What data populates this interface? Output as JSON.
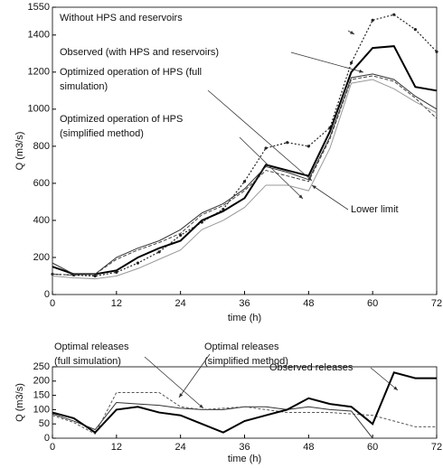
{
  "chart_data": [
    {
      "type": "line",
      "xlabel": "time (h)",
      "ylabel": "Q (m3/s)",
      "x": [
        0,
        4,
        8,
        12,
        16,
        20,
        24,
        28,
        32,
        36,
        40,
        44,
        48,
        52,
        56,
        60,
        64,
        68,
        72
      ],
      "xlim": [
        0,
        72
      ],
      "xticks": [
        0,
        12,
        24,
        36,
        48,
        60,
        72
      ],
      "ylim": [
        0,
        1550
      ],
      "yticks": [
        0,
        200,
        400,
        600,
        800,
        1000,
        1200,
        1400,
        1550
      ],
      "series": [
        {
          "name": "Without HPS and reservoirs",
          "color": "#222222",
          "dash": "2,2",
          "width": 1.2,
          "marker": true,
          "values": [
            110,
            105,
            100,
            120,
            170,
            230,
            320,
            390,
            460,
            610,
            790,
            820,
            800,
            900,
            1250,
            1480,
            1510,
            1430,
            1310
          ]
        },
        {
          "name": "Observed (with HPS and reservoirs)",
          "color": "#000000",
          "dash": "none",
          "width": 2,
          "marker": false,
          "values": [
            150,
            110,
            110,
            130,
            200,
            250,
            290,
            400,
            450,
            520,
            700,
            670,
            640,
            880,
            1200,
            1330,
            1340,
            1120,
            1100
          ]
        },
        {
          "name": "Optimized operation of HPS (full simulation)",
          "color": "#333333",
          "dash": "none",
          "width": 1,
          "marker": false,
          "values": [
            170,
            110,
            110,
            200,
            250,
            290,
            350,
            440,
            490,
            570,
            690,
            660,
            620,
            850,
            1170,
            1190,
            1160,
            1070,
            1000
          ]
        },
        {
          "name": "Optimized operation of HPS (simplified method)",
          "color": "#444444",
          "dash": "4,2",
          "width": 1,
          "marker": false,
          "values": [
            110,
            105,
            110,
            190,
            240,
            280,
            330,
            430,
            480,
            560,
            670,
            640,
            610,
            840,
            1160,
            1180,
            1150,
            1060,
            950
          ]
        },
        {
          "name": "Lower limit",
          "color": "#999999",
          "dash": "none",
          "width": 1,
          "marker": false,
          "values": [
            100,
            90,
            85,
            100,
            140,
            190,
            240,
            350,
            400,
            470,
            590,
            590,
            560,
            790,
            1140,
            1160,
            1110,
            1040,
            980
          ]
        }
      ]
    },
    {
      "type": "line",
      "xlabel": "time (h)",
      "ylabel": "Q (m3/s)",
      "x": [
        0,
        4,
        8,
        12,
        16,
        20,
        24,
        28,
        32,
        36,
        40,
        44,
        48,
        52,
        56,
        60,
        64,
        68,
        72
      ],
      "xlim": [
        0,
        72
      ],
      "xticks": [
        0,
        12,
        24,
        36,
        48,
        60,
        72
      ],
      "ylim": [
        0,
        250
      ],
      "yticks": [
        0,
        50,
        100,
        150,
        200,
        250
      ],
      "series": [
        {
          "name": "Optimal releases (full simulation)",
          "color": "#333333",
          "dash": "none",
          "width": 1,
          "marker": false,
          "values": [
            85,
            60,
            30,
            125,
            120,
            115,
            105,
            100,
            100,
            110,
            110,
            100,
            110,
            100,
            95,
            0,
            0,
            0,
            0
          ]
        },
        {
          "name": "Optimal releases (simplified method)",
          "color": "#555555",
          "dash": "3,2",
          "width": 1,
          "marker": false,
          "values": [
            80,
            55,
            15,
            160,
            160,
            160,
            110,
            100,
            105,
            110,
            100,
            90,
            90,
            90,
            85,
            80,
            60,
            40,
            40
          ]
        },
        {
          "name": "Observed releases",
          "color": "#000000",
          "dash": "none",
          "width": 2,
          "marker": false,
          "values": [
            90,
            70,
            20,
            100,
            110,
            90,
            80,
            50,
            20,
            60,
            80,
            100,
            140,
            120,
            110,
            50,
            230,
            210,
            210
          ]
        }
      ]
    }
  ]
}
